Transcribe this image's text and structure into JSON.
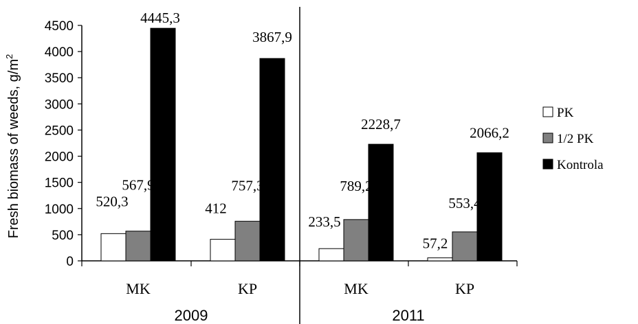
{
  "chart_data": {
    "type": "bar",
    "ylabel": "Fresh biomass of weeds, g/m",
    "ylabel_sup": "2",
    "ylim": [
      0,
      4500
    ],
    "yticks": [
      0,
      500,
      1000,
      1500,
      2000,
      2500,
      3000,
      3500,
      4000,
      4500
    ],
    "grid": false,
    "legend_position": "right",
    "groups": [
      {
        "label": "2009",
        "categories": [
          "MK",
          "KP"
        ]
      },
      {
        "label": "2011",
        "categories": [
          "MK",
          "KP"
        ]
      }
    ],
    "series": [
      {
        "name": "PK",
        "color": "#ffffff",
        "values": [
          520.3,
          412,
          233.5,
          57.2
        ],
        "labels": [
          "520,3",
          "412",
          "233,5",
          "57,2"
        ]
      },
      {
        "name": "1/2 PK",
        "color": "#808080",
        "values": [
          567.9,
          757.3,
          789.2,
          553.4
        ],
        "labels": [
          "567,9",
          "757,3",
          "789,2",
          "553,4"
        ]
      },
      {
        "name": "Kontrola",
        "color": "#000000",
        "values": [
          4445.3,
          3867.9,
          2228.7,
          2066.2
        ],
        "labels": [
          "4445,3",
          "3867,9",
          "2228,7",
          "2066,2"
        ]
      }
    ]
  }
}
